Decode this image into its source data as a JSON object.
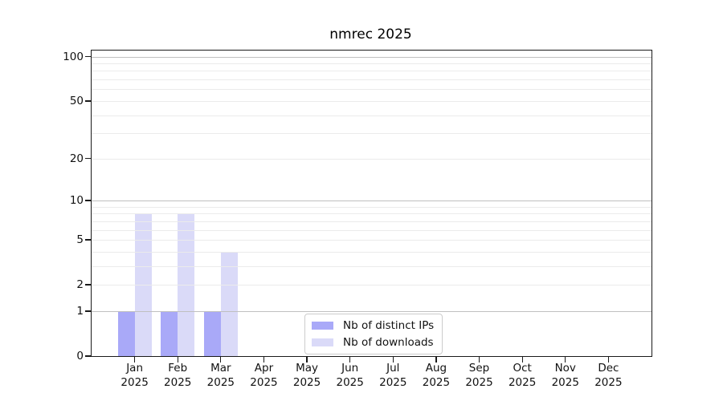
{
  "chart_data": {
    "type": "bar",
    "title": "nmrec 2025",
    "categories": [
      "Jan",
      "Feb",
      "Mar",
      "Apr",
      "May",
      "Jun",
      "Jul",
      "Aug",
      "Sep",
      "Oct",
      "Nov",
      "Dec"
    ],
    "category_year_line": "2025",
    "series": [
      {
        "name": "Nb of distinct IPs",
        "color": "#a9a9f8",
        "values": [
          1,
          1,
          1,
          0,
          0,
          0,
          0,
          0,
          0,
          0,
          0,
          0
        ]
      },
      {
        "name": "Nb of downloads",
        "color": "#dadaf8",
        "values": [
          8,
          8,
          4,
          0,
          0,
          0,
          0,
          0,
          0,
          0,
          0,
          0
        ]
      }
    ],
    "xlabel": "",
    "ylabel": "",
    "scale": "log1p",
    "ylim": [
      0,
      110
    ],
    "yticks": [
      0,
      1,
      2,
      5,
      10,
      20,
      50,
      100
    ],
    "grid": {
      "on": true,
      "major_values": [
        1,
        10,
        100
      ],
      "minor_values": [
        2,
        3,
        4,
        5,
        6,
        7,
        8,
        9,
        20,
        30,
        40,
        50,
        60,
        70,
        80,
        90
      ],
      "major_color": "#c0c0c0",
      "minor_color": "#ebebeb"
    },
    "legend_position": "bottom-center",
    "colors": {
      "spine": "#1a1a1a",
      "text": "#111111",
      "background": "#ffffff"
    }
  }
}
